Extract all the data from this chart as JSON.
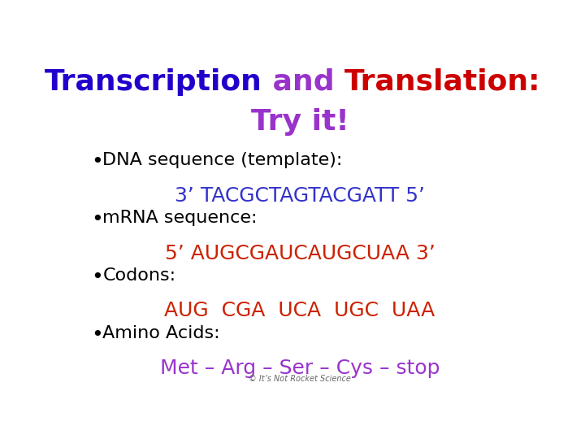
{
  "bg_color": "#ffffff",
  "title_line1_parts": [
    {
      "text": "Transcription",
      "color": "#2200cc"
    },
    {
      "text": " and ",
      "color": "#9933cc"
    },
    {
      "text": "Translation:",
      "color": "#cc0000"
    }
  ],
  "title_line2": {
    "text": "Try it!",
    "color": "#9933cc"
  },
  "bullet_color": "#000000",
  "bullet_label_color": "#000000",
  "items": [
    {
      "label": "DNA sequence (template):",
      "value": "3’ TACGCTAGTACGATT 5’",
      "value_color": "#3333cc"
    },
    {
      "label": "mRNA sequence:",
      "value": "5’ AUGCGAUCAUGCUAA 3’",
      "value_color": "#cc2200"
    },
    {
      "label": "Codons:",
      "value": "AUG  CGA  UCA  UGC  UAA",
      "value_color": "#cc2200"
    },
    {
      "label": "Amino Acids:",
      "value": "Met – Arg – Ser – Cys – stop",
      "value_color": "#9933cc"
    }
  ],
  "footer": "© It’s Not Rocket Science",
  "footer_color": "#666666",
  "title_fontsize": 26,
  "label_fontsize": 16,
  "value_fontsize": 18,
  "footer_fontsize": 7
}
